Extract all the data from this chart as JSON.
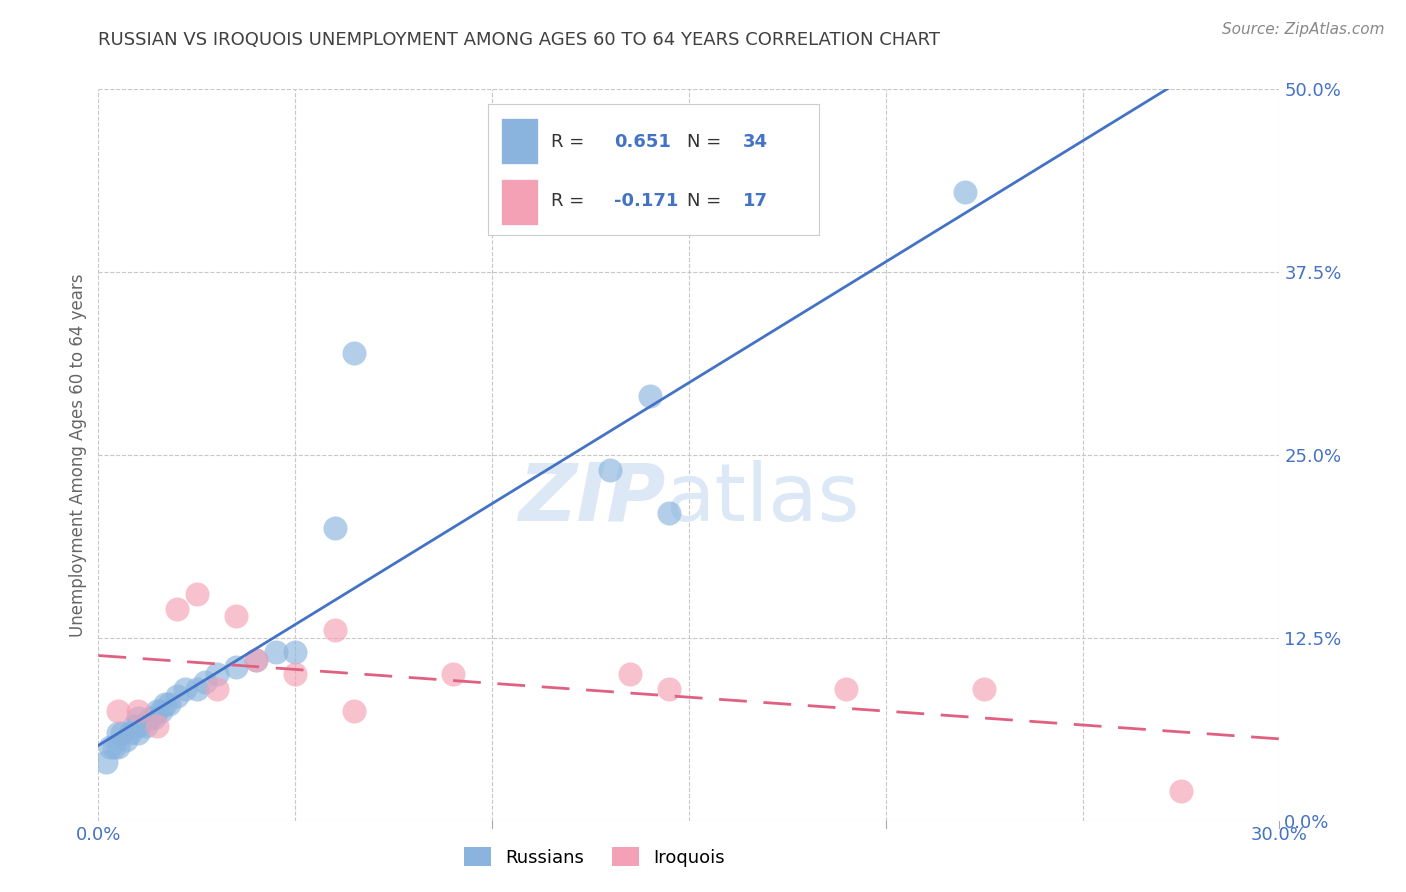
{
  "title": "RUSSIAN VS IROQUOIS UNEMPLOYMENT AMONG AGES 60 TO 64 YEARS CORRELATION CHART",
  "source": "Source: ZipAtlas.com",
  "ylabel": "Unemployment Among Ages 60 to 64 years",
  "xlim": [
    0.0,
    0.3
  ],
  "ylim": [
    0.0,
    0.5
  ],
  "xticks": [
    0.0,
    0.05,
    0.1,
    0.15,
    0.2,
    0.25,
    0.3
  ],
  "xtick_labels": [
    "0.0%",
    "",
    "",
    "",
    "",
    "",
    "30.0%"
  ],
  "ytick_labels": [
    "0.0%",
    "12.5%",
    "25.0%",
    "37.5%",
    "50.0%"
  ],
  "yticks": [
    0.0,
    0.125,
    0.25,
    0.375,
    0.5
  ],
  "russians_r": 0.651,
  "russians_n": 34,
  "iroquois_r": -0.171,
  "iroquois_n": 17,
  "russian_color": "#8ab4de",
  "iroquois_color": "#f4a0b5",
  "russian_line_color": "#4472c4",
  "iroquois_line_color": "#e06080",
  "title_color": "#404040",
  "ytick_color": "#4472c4",
  "xtick_color": "#4472c4",
  "legend_r_color": "#333333",
  "legend_n_color": "#4472c4",
  "background_color": "#ffffff",
  "watermark_color": "#dce8f5",
  "russians_x": [
    0.002,
    0.003,
    0.004,
    0.005,
    0.005,
    0.006,
    0.007,
    0.008,
    0.009,
    0.01,
    0.01,
    0.01,
    0.012,
    0.013,
    0.014,
    0.015,
    0.016,
    0.017,
    0.018,
    0.02,
    0.022,
    0.025,
    0.027,
    0.03,
    0.035,
    0.04,
    0.045,
    0.05,
    0.06,
    0.065,
    0.13,
    0.14,
    0.145,
    0.22
  ],
  "russians_y": [
    0.04,
    0.05,
    0.05,
    0.06,
    0.05,
    0.06,
    0.055,
    0.06,
    0.065,
    0.06,
    0.065,
    0.07,
    0.065,
    0.07,
    0.07,
    0.075,
    0.075,
    0.08,
    0.08,
    0.085,
    0.09,
    0.09,
    0.095,
    0.1,
    0.105,
    0.11,
    0.115,
    0.115,
    0.2,
    0.32,
    0.24,
    0.29,
    0.21,
    0.43
  ],
  "iroquois_x": [
    0.005,
    0.01,
    0.015,
    0.02,
    0.025,
    0.03,
    0.035,
    0.04,
    0.05,
    0.06,
    0.065,
    0.09,
    0.135,
    0.145,
    0.19,
    0.225,
    0.275
  ],
  "iroquois_y": [
    0.075,
    0.075,
    0.065,
    0.145,
    0.155,
    0.09,
    0.14,
    0.11,
    0.1,
    0.13,
    0.075,
    0.1,
    0.1,
    0.09,
    0.09,
    0.09,
    0.02
  ]
}
